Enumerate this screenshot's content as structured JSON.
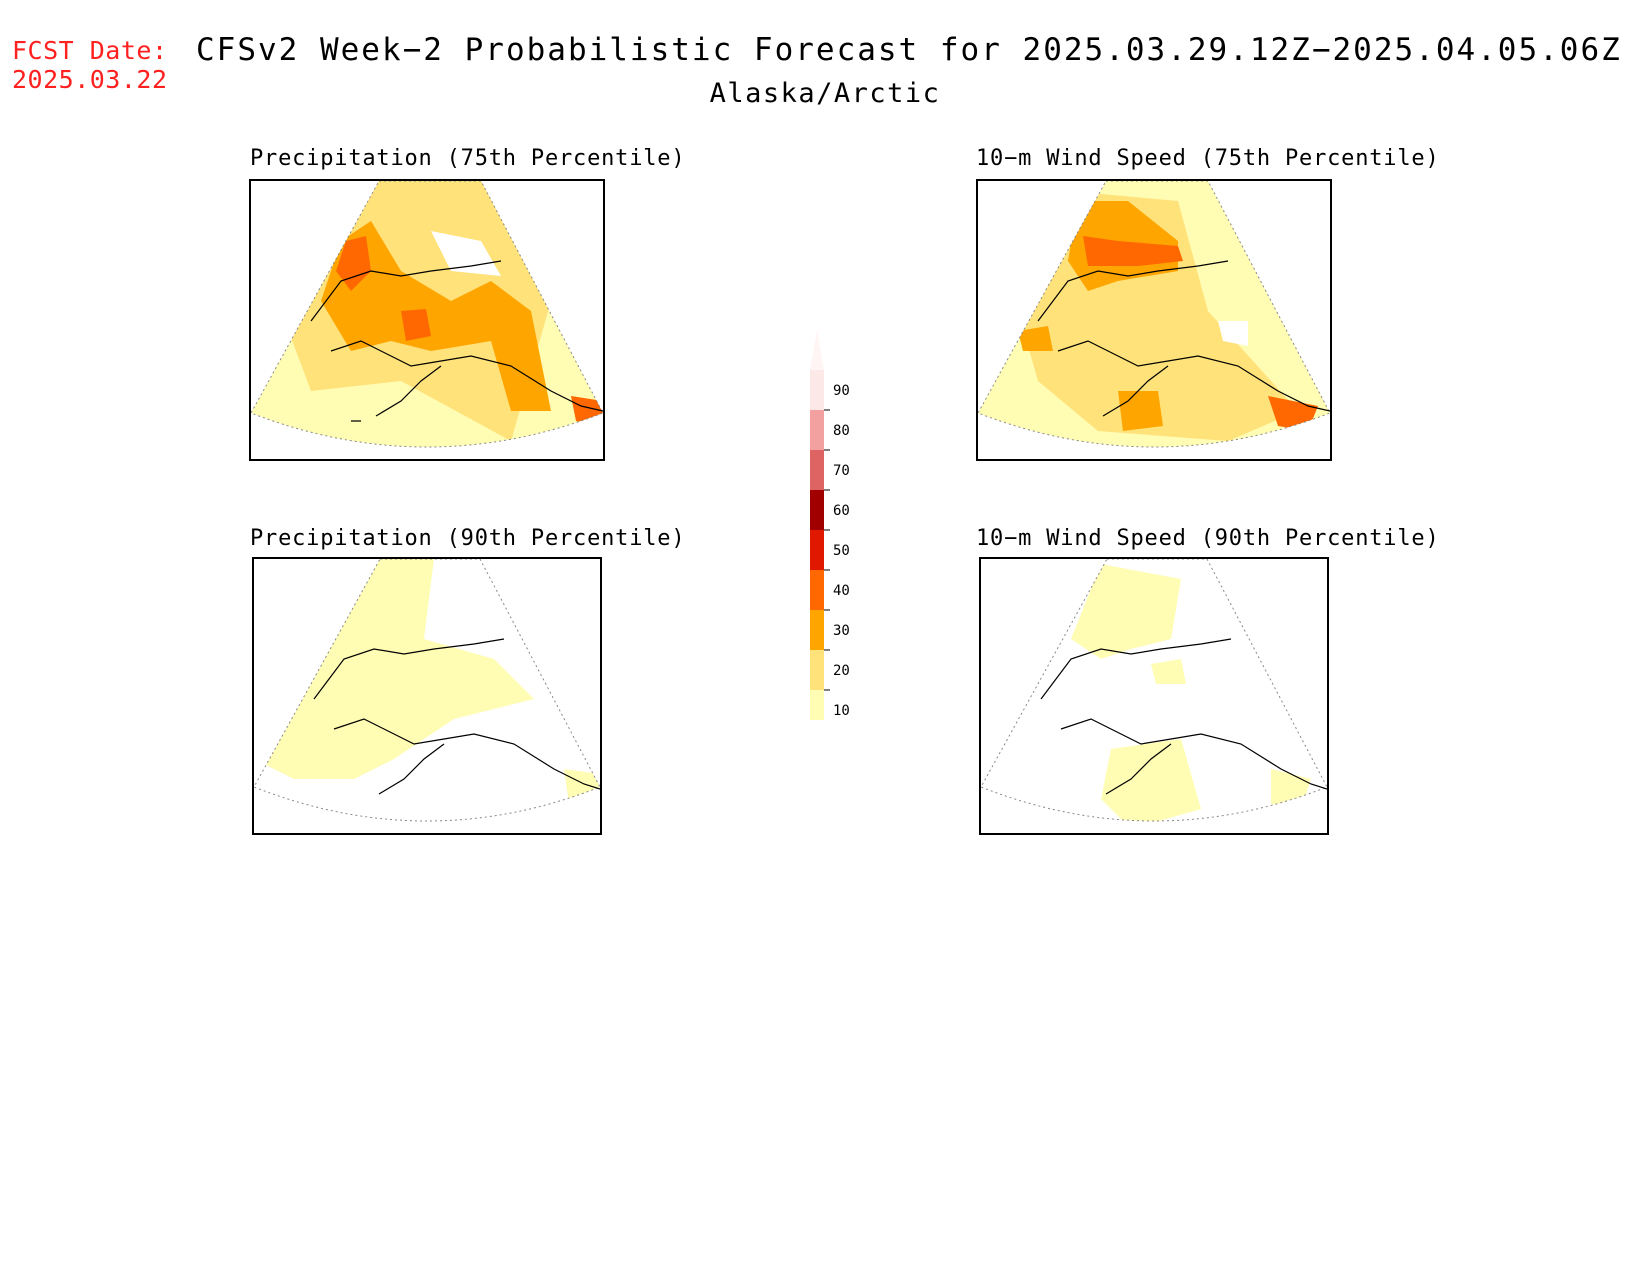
{
  "header": {
    "fcst_label": "FCST Date:",
    "fcst_date": "2025.03.22",
    "title": "CFSv2 Week−2 Probabilistic Forecast for 2025.03.29.12Z−2025.04.05.06Z",
    "region": "Alaska/Arctic"
  },
  "panels": [
    {
      "id": "precip-75",
      "title": "Precipitation (75th Percentile)"
    },
    {
      "id": "wind-75",
      "title": "10−m Wind Speed (75th Percentile)"
    },
    {
      "id": "precip-90",
      "title": "Precipitation (90th Percentile)"
    },
    {
      "id": "wind-90",
      "title": "10−m Wind Speed (90th Percentile)"
    }
  ],
  "colorbar": {
    "levels": [
      "90",
      "80",
      "70",
      "60",
      "50",
      "40",
      "30",
      "20",
      "10"
    ],
    "colors": [
      "#fde8e8",
      "#f2a0a0",
      "#de6464",
      "#a00000",
      "#e01800",
      "#ff6800",
      "#ffa500",
      "#ffe27a",
      "#fffcb4"
    ]
  },
  "colors": {
    "fcst": "#ff2020",
    "level_10_20": "#fffcb4",
    "level_20_30": "#ffe27a",
    "level_30_40": "#ffa500",
    "level_40_50": "#ff6800",
    "level_50_60": "#e01800"
  }
}
